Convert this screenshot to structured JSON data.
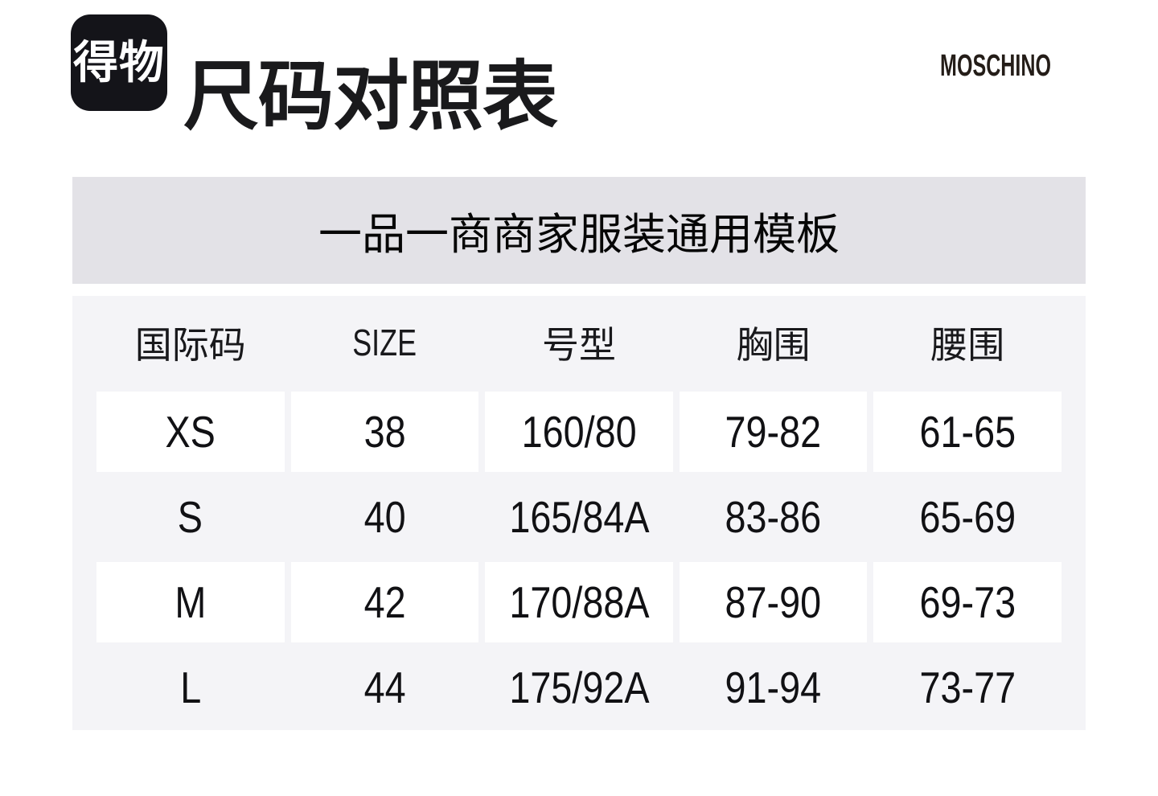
{
  "header": {
    "logo_text": "得物",
    "title": "尺码对照表",
    "brand": "MOSCHINO"
  },
  "banner": {
    "text": "一品一商商家服装通用模板"
  },
  "table": {
    "columns": [
      "国际码",
      "SIZE",
      "号型",
      "胸围",
      "腰围"
    ],
    "rows": [
      {
        "cells": [
          "XS",
          "38",
          "160/80",
          "79-82",
          "61-65"
        ],
        "highlight": true
      },
      {
        "cells": [
          "S",
          "40",
          "165/84A",
          "83-86",
          "65-69"
        ],
        "highlight": false
      },
      {
        "cells": [
          "M",
          "42",
          "170/88A",
          "87-90",
          "69-73"
        ],
        "highlight": true
      },
      {
        "cells": [
          "L",
          "44",
          "175/92A",
          "91-94",
          "73-77"
        ],
        "highlight": false
      }
    ]
  },
  "colors": {
    "logo_bg": "#141419",
    "banner_bg": "#e3e2e7",
    "table_bg": "#f4f4f7",
    "cell_bg": "#ffffff",
    "text": "#141416"
  }
}
